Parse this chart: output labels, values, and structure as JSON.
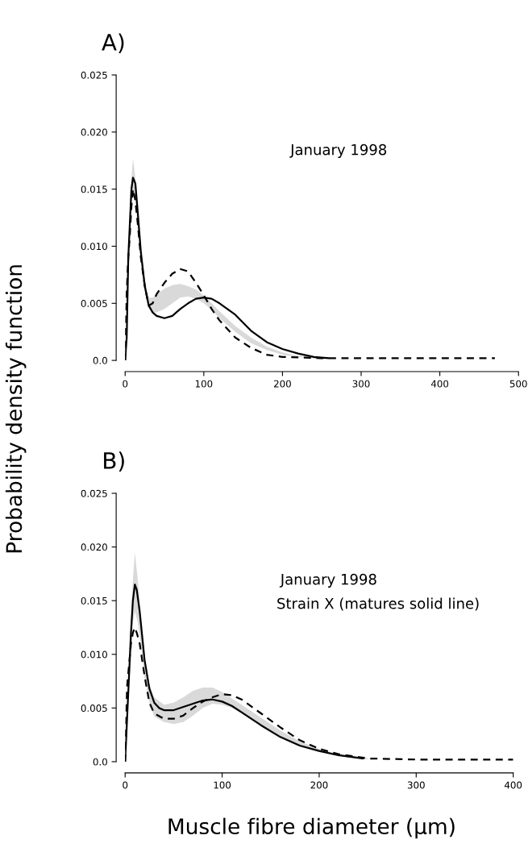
{
  "chart_data": [
    {
      "type": "line",
      "title": "A)",
      "ylabel": "Probability density function",
      "annotations": [
        "January 1998"
      ],
      "xlim": [
        0,
        500
      ],
      "xticks": [
        0,
        100,
        200,
        300,
        400,
        500
      ],
      "ylim": [
        0,
        0.025
      ],
      "yticks": [
        {
          "value": 0,
          "label": "0.0"
        },
        0.005,
        {
          "value": 0.01,
          "label": "0.010"
        },
        0.015,
        {
          "value": 0.02,
          "label": "0.020"
        },
        0.025
      ],
      "grid": false,
      "legend": false,
      "marker": "none",
      "series": [
        {
          "color": "#d9d9d9",
          "x": [
            5,
            8,
            10,
            13,
            16,
            20,
            25,
            30,
            35,
            40,
            50,
            60,
            70,
            80,
            90,
            100,
            110,
            120,
            140,
            160,
            180,
            200,
            220,
            250
          ],
          "values": [
            null,
            null,
            null,
            null,
            null,
            null,
            null,
            null,
            null,
            null,
            null,
            null,
            null,
            null,
            null,
            null,
            null,
            null,
            null,
            null,
            null,
            null,
            null,
            null
          ],
          "upper": [
            0.012,
            0.016,
            0.0177,
            0.016,
            0.013,
            0.01,
            0.007,
            0.0055,
            0.0055,
            0.0058,
            0.0063,
            0.0066,
            0.0067,
            0.0065,
            0.0062,
            0.0057,
            0.005,
            0.0043,
            0.003,
            0.002,
            0.0012,
            0.0007,
            0.0004,
            0.0002
          ],
          "lower": [
            0.01,
            0.014,
            0.015,
            0.014,
            0.0115,
            0.0085,
            0.006,
            0.0046,
            0.0042,
            0.0042,
            0.0045,
            0.005,
            0.0055,
            0.0056,
            0.0054,
            0.005,
            0.0044,
            0.0037,
            0.0025,
            0.0015,
            0.0009,
            0.0005,
            0.0003,
            0.0001
          ]
        },
        {
          "color": "#000000",
          "line_style": "solid",
          "x": [
            0,
            2,
            4,
            6,
            8,
            10,
            13,
            16,
            20,
            25,
            30,
            35,
            40,
            50,
            60,
            70,
            80,
            90,
            100,
            110,
            120,
            140,
            160,
            180,
            200,
            220,
            240,
            258
          ],
          "values": [
            0,
            0.002,
            0.009,
            0.012,
            0.015,
            0.016,
            0.0155,
            0.013,
            0.0095,
            0.0065,
            0.0048,
            0.0042,
            0.0039,
            0.0037,
            0.0039,
            0.0045,
            0.005,
            0.0054,
            0.0055,
            0.0054,
            0.005,
            0.004,
            0.0026,
            0.0016,
            0.001,
            0.0006,
            0.0003,
            0.0002
          ]
        },
        {
          "color": "#000000",
          "line_style": "dashed",
          "x": [
            0,
            2,
            4,
            6,
            8,
            10,
            13,
            16,
            20,
            25,
            30,
            35,
            40,
            50,
            60,
            70,
            80,
            90,
            100,
            110,
            120,
            140,
            160,
            180,
            200,
            250,
            300,
            400,
            470
          ],
          "values": [
            0,
            0.006,
            0.009,
            0.011,
            0.0135,
            0.015,
            0.014,
            0.012,
            0.009,
            0.0065,
            0.0048,
            0.005,
            0.0058,
            0.0068,
            0.0076,
            0.008,
            0.0078,
            0.0068,
            0.0057,
            0.0045,
            0.0035,
            0.002,
            0.0011,
            0.0005,
            0.0003,
            0.0002,
            0.0002,
            0.0002,
            0.0002
          ]
        }
      ]
    },
    {
      "type": "line",
      "title": "B)",
      "xlabel": "Muscle fibre diameter (μm)",
      "annotations": [
        "January 1998",
        "Strain X (matures solid line)"
      ],
      "xlim": [
        0,
        400
      ],
      "xticks": [
        0,
        100,
        200,
        300,
        400
      ],
      "ylim": [
        0,
        0.025
      ],
      "yticks": [
        {
          "value": 0,
          "label": "0.0"
        },
        0.005,
        {
          "value": 0.01,
          "label": "0.010"
        },
        0.015,
        {
          "value": 0.02,
          "label": "0.020"
        },
        0.025
      ],
      "grid": false,
      "legend": false,
      "marker": "none",
      "series": [
        {
          "color": "#d9d9d9",
          "x": [
            5,
            8,
            10,
            13,
            16,
            20,
            25,
            30,
            40,
            50,
            60,
            70,
            80,
            90,
            100,
            110,
            120,
            140,
            160,
            180,
            200,
            220,
            250
          ],
          "values": [
            null,
            null,
            null,
            null,
            null,
            null,
            null,
            null,
            null,
            null,
            null,
            null,
            null,
            null,
            null,
            null,
            null,
            null,
            null,
            null,
            null,
            null,
            null
          ],
          "upper": [
            0.011,
            0.017,
            0.0195,
            0.017,
            0.0135,
            0.0095,
            0.0072,
            0.006,
            0.0053,
            0.0055,
            0.006,
            0.0066,
            0.0069,
            0.0069,
            0.0065,
            0.0059,
            0.0053,
            0.0041,
            0.0029,
            0.0019,
            0.0012,
            0.0007,
            0.0003
          ],
          "lower": [
            0.008,
            0.013,
            0.014,
            0.013,
            0.011,
            0.0078,
            0.0055,
            0.0042,
            0.0037,
            0.0035,
            0.0037,
            0.0043,
            0.005,
            0.0054,
            0.0053,
            0.005,
            0.0045,
            0.0033,
            0.0022,
            0.0014,
            0.0009,
            0.0005,
            0.0002
          ]
        },
        {
          "color": "#000000",
          "line_style": "solid",
          "x": [
            0,
            2,
            4,
            6,
            8,
            10,
            12,
            15,
            20,
            25,
            30,
            35,
            40,
            50,
            60,
            70,
            80,
            90,
            100,
            110,
            120,
            140,
            160,
            180,
            200,
            220,
            245
          ],
          "values": [
            0,
            0.004,
            0.008,
            0.012,
            0.015,
            0.0165,
            0.016,
            0.014,
            0.0095,
            0.0068,
            0.0055,
            0.005,
            0.0048,
            0.0048,
            0.0051,
            0.0054,
            0.0057,
            0.0058,
            0.0056,
            0.0052,
            0.0046,
            0.0034,
            0.0023,
            0.0015,
            0.001,
            0.0006,
            0.0003
          ]
        },
        {
          "color": "#000000",
          "line_style": "dashed",
          "x": [
            0,
            2,
            4,
            6,
            8,
            10,
            12,
            15,
            20,
            25,
            30,
            40,
            50,
            60,
            70,
            80,
            90,
            100,
            110,
            120,
            140,
            160,
            180,
            200,
            220,
            250,
            300,
            400
          ],
          "values": [
            0,
            0.007,
            0.009,
            0.011,
            0.012,
            0.0125,
            0.012,
            0.011,
            0.008,
            0.0055,
            0.0045,
            0.004,
            0.004,
            0.0043,
            0.005,
            0.0056,
            0.006,
            0.0063,
            0.0062,
            0.0058,
            0.0045,
            0.0032,
            0.002,
            0.0012,
            0.0007,
            0.0003,
            0.0002,
            0.0002
          ]
        }
      ]
    }
  ]
}
